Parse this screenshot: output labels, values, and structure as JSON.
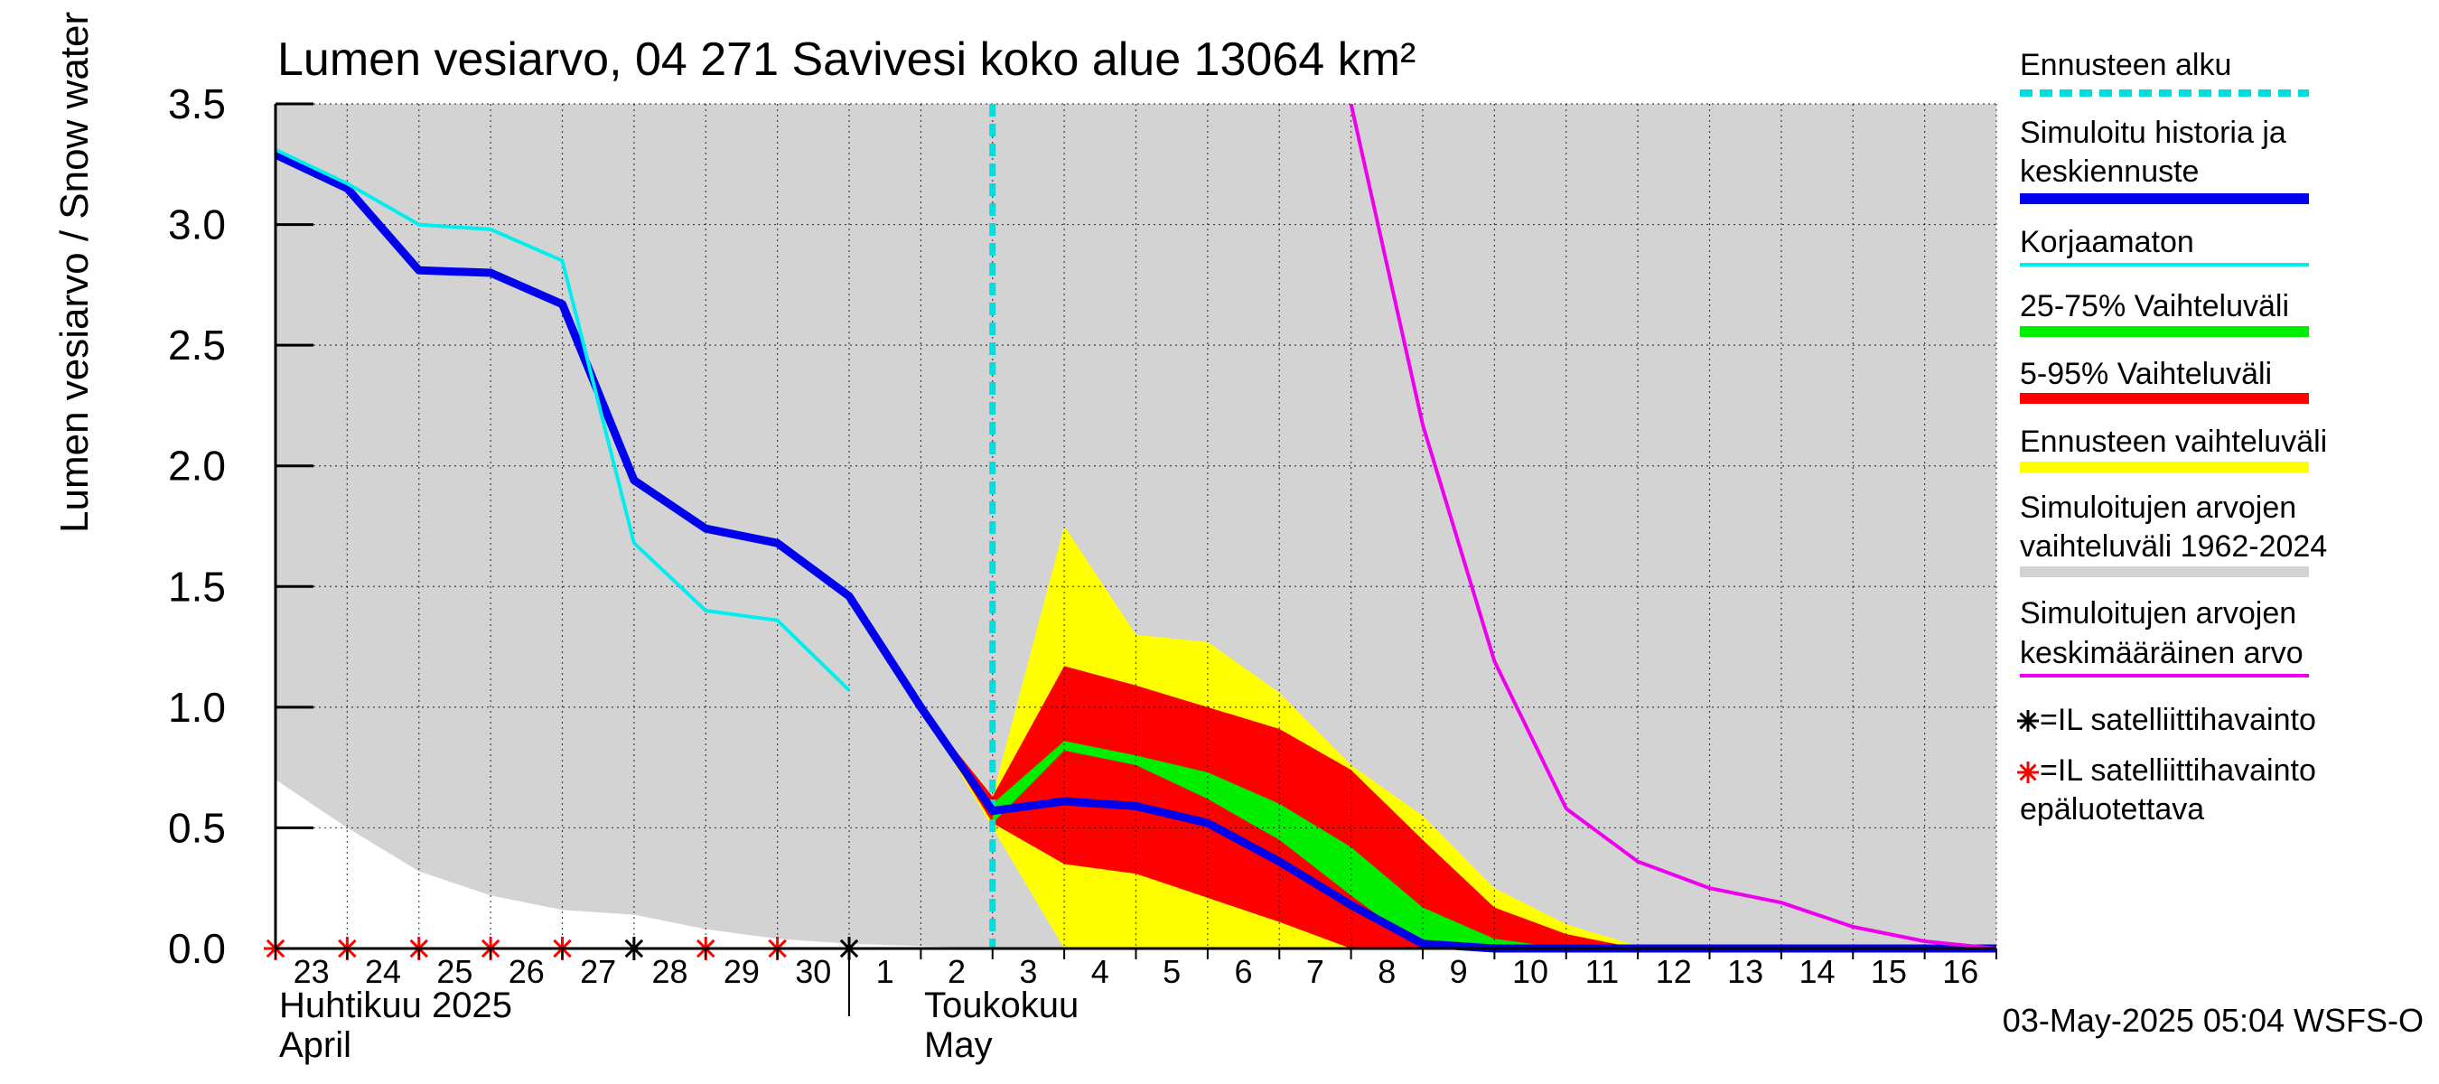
{
  "chart_data": {
    "type": "area",
    "title": "Lumen vesiarvo, 04 271 Savivesi koko alue 13064 km²",
    "ylabel": "Lumen vesiarvo / Snow water equiv.    mm",
    "ylim": [
      0,
      3.5
    ],
    "yticks": [
      "0.0",
      "0.5",
      "1.0",
      "1.5",
      "2.0",
      "2.5",
      "3.0",
      "3.5"
    ],
    "x_range_days": [
      "2025-04-23",
      "2025-05-17"
    ],
    "xtick_days": [
      "23",
      "24",
      "25",
      "26",
      "27",
      "28",
      "29",
      "30",
      "1",
      "2",
      "3",
      "4",
      "5",
      "6",
      "7",
      "8",
      "9",
      "10",
      "11",
      "12",
      "13",
      "14",
      "15",
      "16"
    ],
    "month_labels": [
      {
        "line1": "Huhtikuu  2025",
        "line2": "April"
      },
      {
        "line1": "Toukokuu",
        "line2": "May"
      }
    ],
    "grid": true,
    "legend_position": "right",
    "timestamp": "03-May-2025 05:04 WSFS-O",
    "forecast_start": "2025-05-03",
    "colors": {
      "hist_range": "#d3d3d3",
      "forecast_range": "#ffff00",
      "p5_95": "#ff0000",
      "p25_75": "#00ee00",
      "simulated": "#0000ee",
      "uncorrected": "#00eeee",
      "mean": "#ee00ee",
      "forecast_start": "#00dddd"
    },
    "series": [
      {
        "name": "Simuloitu historia ja keskiennuste",
        "key": "simulated",
        "x": [
          "2025-04-23",
          "2025-04-24",
          "2025-04-25",
          "2025-04-26",
          "2025-04-27",
          "2025-04-28",
          "2025-04-29",
          "2025-04-30",
          "2025-05-01",
          "2025-05-02",
          "2025-05-03",
          "2025-05-04",
          "2025-05-05",
          "2025-05-06",
          "2025-05-07",
          "2025-05-08",
          "2025-05-09",
          "2025-05-10",
          "2025-05-11",
          "2025-05-12",
          "2025-05-13",
          "2025-05-14",
          "2025-05-15",
          "2025-05-16",
          "2025-05-17"
        ],
        "values": [
          3.29,
          3.15,
          2.81,
          2.8,
          2.67,
          1.94,
          1.74,
          1.68,
          1.46,
          1.0,
          0.57,
          0.61,
          0.59,
          0.52,
          0.36,
          0.18,
          0.02,
          0.0,
          0.0,
          0.0,
          0.0,
          0.0,
          0.0,
          0.0,
          0.0
        ]
      },
      {
        "name": "Korjaamaton",
        "key": "uncorrected",
        "x": [
          "2025-04-23",
          "2025-04-24",
          "2025-04-25",
          "2025-04-26",
          "2025-04-27",
          "2025-04-28",
          "2025-04-29",
          "2025-04-30",
          "2025-05-01"
        ],
        "values": [
          3.31,
          3.17,
          3.0,
          2.98,
          2.85,
          1.68,
          1.4,
          1.36,
          1.07
        ]
      },
      {
        "name": "Simuloitujen arvojen keskimääräinen arvo",
        "key": "mean",
        "x": [
          "2025-05-08",
          "2025-05-09",
          "2025-05-10",
          "2025-05-11",
          "2025-05-12",
          "2025-05-13",
          "2025-05-14",
          "2025-05-15",
          "2025-05-16",
          "2025-05-17"
        ],
        "values": [
          3.5,
          2.17,
          1.19,
          0.58,
          0.36,
          0.25,
          0.19,
          0.09,
          0.03,
          0.0
        ]
      }
    ],
    "bands": [
      {
        "name": "Simuloitujen arvojen vaihteluväli 1962-2024",
        "key": "hist_range",
        "x": [
          "2025-04-23",
          "2025-04-24",
          "2025-04-25",
          "2025-04-26",
          "2025-04-27",
          "2025-04-28",
          "2025-04-29",
          "2025-04-30",
          "2025-05-01",
          "2025-05-02",
          "2025-05-03",
          "2025-05-17"
        ],
        "upper": [
          3.5,
          3.5,
          3.5,
          3.5,
          3.5,
          3.5,
          3.5,
          3.5,
          3.5,
          3.5,
          3.5,
          3.5
        ],
        "lower": [
          0.7,
          0.5,
          0.32,
          0.22,
          0.16,
          0.14,
          0.08,
          0.04,
          0.02,
          0.01,
          0.0,
          0.0
        ]
      },
      {
        "name": "Ennusteen vaihteluväli",
        "key": "forecast_range",
        "x": [
          "2025-05-02",
          "2025-05-03",
          "2025-05-04",
          "2025-05-05",
          "2025-05-06",
          "2025-05-07",
          "2025-05-08",
          "2025-05-09",
          "2025-05-10",
          "2025-05-11",
          "2025-05-12"
        ],
        "upper": [
          1.0,
          0.63,
          1.75,
          1.3,
          1.27,
          1.06,
          0.76,
          0.55,
          0.25,
          0.1,
          0.01
        ],
        "lower": [
          1.0,
          0.5,
          0.0,
          0.0,
          0.0,
          0.0,
          0.0,
          0.0,
          0.0,
          0.0,
          0.0
        ]
      },
      {
        "name": "5-95% Vaihteluväli",
        "key": "p5_95",
        "x": [
          "2025-05-02",
          "2025-05-03",
          "2025-05-04",
          "2025-05-05",
          "2025-05-06",
          "2025-05-07",
          "2025-05-08",
          "2025-05-09",
          "2025-05-10",
          "2025-05-11",
          "2025-05-12"
        ],
        "upper": [
          1.0,
          0.63,
          1.17,
          1.09,
          1.0,
          0.91,
          0.74,
          0.45,
          0.17,
          0.06,
          0.0
        ],
        "lower": [
          1.0,
          0.52,
          0.35,
          0.31,
          0.21,
          0.11,
          0.0,
          0.0,
          0.0,
          0.0,
          0.0
        ]
      },
      {
        "name": "25-75% Vaihteluväli",
        "key": "p25_75",
        "x": [
          "2025-05-03",
          "2025-05-04",
          "2025-05-05",
          "2025-05-06",
          "2025-05-07",
          "2025-05-08",
          "2025-05-09",
          "2025-05-10",
          "2025-05-11"
        ],
        "upper": [
          0.6,
          0.86,
          0.8,
          0.73,
          0.6,
          0.42,
          0.17,
          0.04,
          0.0
        ],
        "lower": [
          0.52,
          0.82,
          0.76,
          0.62,
          0.45,
          0.22,
          0.0,
          0.0,
          0.0
        ]
      }
    ],
    "observations": [
      {
        "x": "2025-04-23",
        "value": 0.0,
        "reliable": false
      },
      {
        "x": "2025-04-24",
        "value": 0.0,
        "reliable": false
      },
      {
        "x": "2025-04-25",
        "value": 0.0,
        "reliable": false
      },
      {
        "x": "2025-04-26",
        "value": 0.0,
        "reliable": false
      },
      {
        "x": "2025-04-27",
        "value": 0.0,
        "reliable": false
      },
      {
        "x": "2025-04-28",
        "value": 0.0,
        "reliable": true
      },
      {
        "x": "2025-04-29",
        "value": 0.0,
        "reliable": false
      },
      {
        "x": "2025-04-30",
        "value": 0.0,
        "reliable": false
      },
      {
        "x": "2025-05-01",
        "value": 0.0,
        "reliable": true
      }
    ],
    "legend": [
      {
        "key": "forecast_start",
        "label": "Ennusteen alku",
        "style": "dashed"
      },
      {
        "key": "simulated",
        "label": "Simuloitu historia ja keskiennuste",
        "style": "thick"
      },
      {
        "key": "uncorrected",
        "label": "Korjaamaton",
        "style": "line"
      },
      {
        "key": "p25_75",
        "label": "25-75% Vaihteluväli",
        "style": "thick"
      },
      {
        "key": "p5_95",
        "label": "5-95% Vaihteluväli",
        "style": "thick"
      },
      {
        "key": "forecast_range",
        "label": "Ennusteen vaihteluväli",
        "style": "thick"
      },
      {
        "key": "hist_range",
        "label": "Simuloitujen arvojen vaihteluväli 1962-2024",
        "style": "thick"
      },
      {
        "key": "mean",
        "label": "Simuloitujen arvojen keskimääräinen arvo",
        "style": "line"
      },
      {
        "key": "obs_ok",
        "label": "=IL satelliittihavainto",
        "style": "marker",
        "marker_color": "#000000"
      },
      {
        "key": "obs_bad",
        "label": "=IL satelliittihavainto epäluotettava",
        "style": "marker",
        "marker_color": "#ff0000"
      }
    ]
  }
}
